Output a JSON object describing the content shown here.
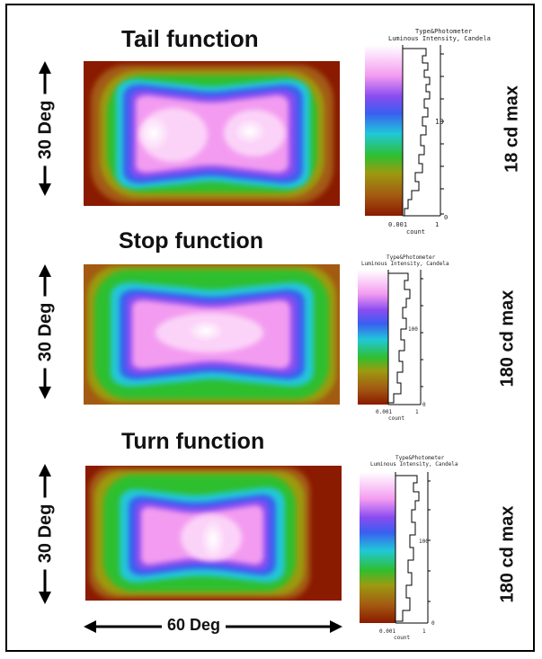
{
  "panels": [
    {
      "title": "Tail function",
      "vertical_label": "30 Deg",
      "max_label": "18 cd max",
      "legend": {
        "header1": "Type&Photometer",
        "header2": "Luminous Intensity, Candela",
        "mid_tick": "10",
        "zero_tick": "0",
        "xaxis_left": "0.001",
        "xaxis_right": "1",
        "xaxis_label": "count"
      }
    },
    {
      "title": "Stop function",
      "vertical_label": "30 Deg",
      "max_label": "180 cd max",
      "legend": {
        "header1": "Type&Photometer",
        "header2": "Luminous Intensity, Candela",
        "mid_tick": "100",
        "zero_tick": "0",
        "xaxis_left": "0.001",
        "xaxis_right": "1",
        "xaxis_label": "count"
      }
    },
    {
      "title": "Turn function",
      "vertical_label": "30 Deg",
      "max_label": "180 cd max",
      "legend": {
        "header1": "Type&Photometer",
        "header2": "Luminous Intensity, Candela",
        "mid_tick": "100",
        "zero_tick": "0",
        "xaxis_left": "0.001",
        "xaxis_right": "1",
        "xaxis_label": "count"
      }
    }
  ],
  "horizontal_label": "60 Deg",
  "colors": {
    "dark_red": "#8a1a00",
    "brown": "#a35a12",
    "olive": "#9c9a10",
    "green": "#2fbf2f",
    "cyan": "#20c8d8",
    "blue": "#3a5ef0",
    "purple": "#8a4cf0",
    "pink": "#f39bf0",
    "light_pink": "#fbd3f8",
    "white": "#ffffff"
  }
}
